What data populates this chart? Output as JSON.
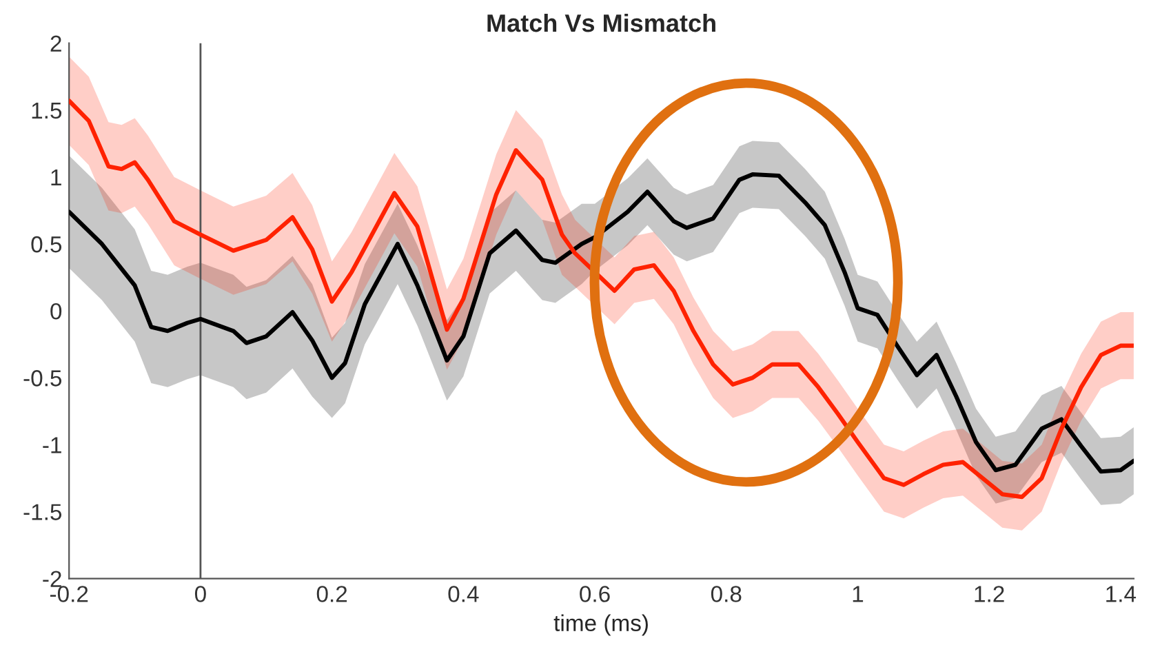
{
  "chart_data": {
    "type": "line",
    "title": "Match Vs Mismatch",
    "xlabel": "time (ms)",
    "xlim": [
      -0.2,
      1.42
    ],
    "xticks": [
      -0.2,
      0,
      0.2,
      0.4,
      0.6,
      0.8,
      1,
      1.2,
      1.4
    ],
    "ylim": [
      -2,
      2
    ],
    "yticks": [
      -2,
      -1.5,
      -1,
      -0.5,
      0,
      0.5,
      1,
      1.5,
      2
    ],
    "grid": false,
    "marker": "none",
    "line_style": "solid",
    "ref_lines": [
      {
        "axis": "x",
        "value": 0,
        "color": "#555555"
      }
    ],
    "series": [
      {
        "color": "#000000",
        "x": [
          -0.2,
          -0.15,
          -0.1,
          -0.075,
          -0.05,
          -0.02,
          0,
          0.05,
          0.07,
          0.1,
          0.14,
          0.17,
          0.2,
          0.22,
          0.25,
          0.3,
          0.33,
          0.375,
          0.4,
          0.44,
          0.48,
          0.52,
          0.54,
          0.58,
          0.6,
          0.65,
          0.68,
          0.72,
          0.74,
          0.78,
          0.82,
          0.84,
          0.88,
          0.92,
          0.95,
          0.98,
          1.0,
          1.03,
          1.06,
          1.09,
          1.12,
          1.15,
          1.18,
          1.21,
          1.24,
          1.28,
          1.31,
          1.34,
          1.37,
          1.4,
          1.42
        ],
        "values": [
          0.74,
          0.5,
          0.19,
          -0.12,
          -0.15,
          -0.09,
          -0.06,
          -0.15,
          -0.24,
          -0.19,
          -0.01,
          -0.22,
          -0.5,
          -0.39,
          0.05,
          0.5,
          0.19,
          -0.37,
          -0.19,
          0.43,
          0.6,
          0.38,
          0.36,
          0.5,
          0.55,
          0.74,
          0.89,
          0.67,
          0.62,
          0.69,
          0.98,
          1.02,
          1.01,
          0.81,
          0.64,
          0.29,
          0.02,
          -0.03,
          -0.26,
          -0.48,
          -0.33,
          -0.64,
          -0.98,
          -1.19,
          -1.15,
          -0.88,
          -0.81,
          -1.01,
          -1.2,
          -1.19,
          -1.12
        ],
        "lower": [
          0.32,
          0.08,
          -0.23,
          -0.54,
          -0.57,
          -0.51,
          -0.48,
          -0.57,
          -0.66,
          -0.61,
          -0.43,
          -0.64,
          -0.8,
          -0.69,
          -0.25,
          0.2,
          -0.11,
          -0.67,
          -0.49,
          0.13,
          0.3,
          0.08,
          0.06,
          0.2,
          0.3,
          0.49,
          0.64,
          0.42,
          0.37,
          0.44,
          0.73,
          0.77,
          0.76,
          0.56,
          0.39,
          0.04,
          -0.23,
          -0.28,
          -0.51,
          -0.73,
          -0.58,
          -0.89,
          -1.23,
          -1.44,
          -1.4,
          -1.13,
          -1.06,
          -1.26,
          -1.45,
          -1.44,
          -1.37
        ],
        "upper": [
          1.16,
          0.92,
          0.61,
          0.3,
          0.27,
          0.33,
          0.36,
          0.27,
          0.18,
          0.23,
          0.41,
          0.2,
          -0.2,
          -0.09,
          0.35,
          0.8,
          0.49,
          -0.07,
          0.11,
          0.73,
          0.9,
          0.68,
          0.66,
          0.8,
          0.8,
          0.99,
          1.14,
          0.92,
          0.87,
          0.94,
          1.23,
          1.27,
          1.26,
          1.06,
          0.89,
          0.54,
          0.27,
          0.22,
          -0.01,
          -0.23,
          -0.08,
          -0.39,
          -0.73,
          -0.94,
          -0.9,
          -0.63,
          -0.56,
          -0.76,
          -0.95,
          -0.94,
          -0.87
        ]
      },
      {
        "color": "#ff2200",
        "x": [
          -0.2,
          -0.17,
          -0.14,
          -0.12,
          -0.1,
          -0.08,
          -0.04,
          0,
          0.05,
          0.1,
          0.14,
          0.17,
          0.2,
          0.23,
          0.295,
          0.33,
          0.375,
          0.4,
          0.45,
          0.48,
          0.52,
          0.55,
          0.57,
          0.6,
          0.63,
          0.66,
          0.69,
          0.72,
          0.75,
          0.78,
          0.81,
          0.84,
          0.87,
          0.91,
          0.94,
          0.97,
          1.0,
          1.04,
          1.07,
          1.1,
          1.13,
          1.16,
          1.19,
          1.22,
          1.25,
          1.28,
          1.31,
          1.34,
          1.37,
          1.4,
          1.42
        ],
        "values": [
          1.57,
          1.42,
          1.08,
          1.06,
          1.11,
          0.98,
          0.67,
          0.57,
          0.45,
          0.53,
          0.7,
          0.46,
          0.07,
          0.29,
          0.88,
          0.63,
          -0.14,
          0.09,
          0.87,
          1.2,
          0.98,
          0.57,
          0.43,
          0.29,
          0.15,
          0.31,
          0.34,
          0.15,
          -0.15,
          -0.4,
          -0.55,
          -0.5,
          -0.4,
          -0.4,
          -0.57,
          -0.77,
          -0.98,
          -1.25,
          -1.3,
          -1.22,
          -1.15,
          -1.13,
          -1.25,
          -1.37,
          -1.39,
          -1.25,
          -0.88,
          -0.57,
          -0.33,
          -0.26,
          -0.26
        ],
        "lower": [
          1.24,
          1.09,
          0.75,
          0.73,
          0.78,
          0.65,
          0.34,
          0.24,
          0.12,
          0.2,
          0.37,
          0.13,
          -0.23,
          -0.01,
          0.58,
          0.33,
          -0.44,
          -0.21,
          0.57,
          0.9,
          0.68,
          0.27,
          0.18,
          0.04,
          -0.1,
          0.06,
          0.09,
          -0.1,
          -0.4,
          -0.65,
          -0.8,
          -0.75,
          -0.65,
          -0.65,
          -0.82,
          -1.02,
          -1.23,
          -1.5,
          -1.55,
          -1.47,
          -1.4,
          -1.38,
          -1.5,
          -1.62,
          -1.64,
          -1.5,
          -1.13,
          -0.82,
          -0.58,
          -0.51,
          -0.51
        ],
        "upper": [
          1.9,
          1.75,
          1.41,
          1.39,
          1.44,
          1.31,
          1.0,
          0.9,
          0.78,
          0.86,
          1.03,
          0.79,
          0.37,
          0.59,
          1.18,
          0.93,
          0.16,
          0.39,
          1.17,
          1.5,
          1.28,
          0.87,
          0.68,
          0.54,
          0.4,
          0.56,
          0.59,
          0.4,
          0.1,
          -0.15,
          -0.3,
          -0.25,
          -0.15,
          -0.15,
          -0.32,
          -0.52,
          -0.73,
          -1.0,
          -1.05,
          -0.97,
          -0.9,
          -0.88,
          -1.0,
          -1.12,
          -1.14,
          -1.0,
          -0.63,
          -0.32,
          -0.08,
          -0.01,
          -0.01
        ]
      }
    ]
  }
}
